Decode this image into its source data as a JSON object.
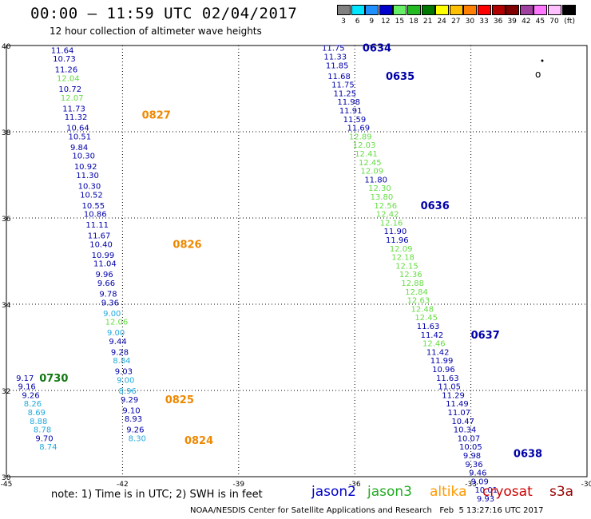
{
  "title": "00:00 – 11:59 UTC 02/04/2017",
  "subtitle": "12 hour collection of altimeter wave heights",
  "legend": {
    "unit": "(ft)",
    "items": [
      {
        "label": "3",
        "color": "#808080"
      },
      {
        "label": "6",
        "color": "#00e5ff"
      },
      {
        "label": "9",
        "color": "#1e90ff"
      },
      {
        "label": "12",
        "color": "#0000cd"
      },
      {
        "label": "15",
        "color": "#66ee66"
      },
      {
        "label": "18",
        "color": "#22bb22"
      },
      {
        "label": "21",
        "color": "#007700"
      },
      {
        "label": "24",
        "color": "#ffff00"
      },
      {
        "label": "27",
        "color": "#ffc000"
      },
      {
        "label": "30",
        "color": "#ff7f00"
      },
      {
        "label": "33",
        "color": "#ff0000"
      },
      {
        "label": "36",
        "color": "#b00000"
      },
      {
        "label": "39",
        "color": "#800000"
      },
      {
        "label": "42",
        "color": "#a040a0"
      },
      {
        "label": "45",
        "color": "#ff77ff"
      },
      {
        "label": "70",
        "color": "#ffc0ff"
      },
      {
        "label": "",
        "color": "#000000"
      }
    ]
  },
  "axes": {
    "lon_ticks": [
      "-45",
      "-42",
      "-39",
      "-36",
      "-33",
      "-30"
    ],
    "lat_ticks": [
      "40",
      "38",
      "36",
      "34",
      "32",
      "30"
    ]
  },
  "colors": {
    "c12": "#0000aa",
    "c15": "#66dd44",
    "c9": "#22aadd",
    "cg": "#117711",
    "co": "#ee8800"
  },
  "tracks": [
    {
      "name": "0827",
      "time_color": "co",
      "time_lat": 38.4,
      "time_lon": -41.5,
      "points": [
        {
          "lat": 39.9,
          "lon": -43.85,
          "v": "11.64",
          "c": "c12"
        },
        {
          "lat": 39.7,
          "lon": -43.8,
          "v": "10.73",
          "c": "c12"
        },
        {
          "lat": 39.45,
          "lon": -43.75,
          "v": "11.26",
          "c": "c12"
        },
        {
          "lat": 39.25,
          "lon": -43.7,
          "v": "12.04",
          "c": "c15"
        },
        {
          "lat": 39.0,
          "lon": -43.65,
          "v": "10.72",
          "c": "c12"
        },
        {
          "lat": 38.8,
          "lon": -43.6,
          "v": "12.07",
          "c": "c15"
        },
        {
          "lat": 38.55,
          "lon": -43.55,
          "v": "11.73",
          "c": "c12"
        },
        {
          "lat": 38.35,
          "lon": -43.5,
          "v": "11.32",
          "c": "c12"
        },
        {
          "lat": 38.1,
          "lon": -43.45,
          "v": "10.64",
          "c": "c12"
        },
        {
          "lat": 37.9,
          "lon": -43.4,
          "v": "10.51",
          "c": "c12"
        },
        {
          "lat": 37.65,
          "lon": -43.35,
          "v": "9.84",
          "c": "c12"
        },
        {
          "lat": 37.45,
          "lon": -43.3,
          "v": "10.30",
          "c": "c12"
        },
        {
          "lat": 37.2,
          "lon": -43.25,
          "v": "10.92",
          "c": "c12"
        },
        {
          "lat": 37.0,
          "lon": -43.2,
          "v": "11.30",
          "c": "c12"
        },
        {
          "lat": 36.75,
          "lon": -43.15,
          "v": "10.30",
          "c": "c12"
        },
        {
          "lat": 36.55,
          "lon": -43.1,
          "v": "10.52",
          "c": "c12"
        },
        {
          "lat": 36.3,
          "lon": -43.05,
          "v": "10.55",
          "c": "c12"
        },
        {
          "lat": 36.1,
          "lon": -43.0,
          "v": "10.86",
          "c": "c12"
        },
        {
          "lat": 35.85,
          "lon": -42.95,
          "v": "11.11",
          "c": "c12"
        }
      ]
    },
    {
      "name": "0826",
      "time_color": "co",
      "time_lat": 35.4,
      "time_lon": -40.7,
      "points": [
        {
          "lat": 35.6,
          "lon": -42.9,
          "v": "11.67",
          "c": "c12"
        },
        {
          "lat": 35.4,
          "lon": -42.85,
          "v": "10.40",
          "c": "c12"
        },
        {
          "lat": 35.15,
          "lon": -42.8,
          "v": "10.99",
          "c": "c12"
        },
        {
          "lat": 34.95,
          "lon": -42.75,
          "v": "11.04",
          "c": "c12"
        },
        {
          "lat": 34.7,
          "lon": -42.7,
          "v": "9.96",
          "c": "c12"
        },
        {
          "lat": 34.5,
          "lon": -42.65,
          "v": "9.66",
          "c": "c12"
        },
        {
          "lat": 34.25,
          "lon": -42.6,
          "v": "9.78",
          "c": "c12"
        },
        {
          "lat": 34.05,
          "lon": -42.55,
          "v": "9.36",
          "c": "c12"
        },
        {
          "lat": 33.8,
          "lon": -42.5,
          "v": "9.00",
          "c": "c9"
        },
        {
          "lat": 33.6,
          "lon": -42.45,
          "v": "12.06",
          "c": "c15"
        },
        {
          "lat": 33.35,
          "lon": -42.4,
          "v": "9.00",
          "c": "c9"
        },
        {
          "lat": 33.15,
          "lon": -42.35,
          "v": "9.44",
          "c": "c12"
        },
        {
          "lat": 32.9,
          "lon": -42.3,
          "v": "9.28",
          "c": "c12"
        },
        {
          "lat": 32.7,
          "lon": -42.25,
          "v": "8.84",
          "c": "c9"
        }
      ]
    },
    {
      "name": "0825",
      "time_color": "co",
      "time_lat": 31.8,
      "time_lon": -40.9,
      "points": [
        {
          "lat": 32.45,
          "lon": -42.2,
          "v": "9.03",
          "c": "c12"
        },
        {
          "lat": 32.25,
          "lon": -42.15,
          "v": "9.00",
          "c": "c9"
        },
        {
          "lat": 32.0,
          "lon": -42.1,
          "v": "8.96",
          "c": "c9"
        },
        {
          "lat": 31.8,
          "lon": -42.05,
          "v": "9.29",
          "c": "c12"
        },
        {
          "lat": 31.55,
          "lon": -42.0,
          "v": "9.10",
          "c": "c12"
        },
        {
          "lat": 31.35,
          "lon": -41.95,
          "v": "8.93",
          "c": "c12"
        },
        {
          "lat": 31.1,
          "lon": -41.9,
          "v": "9.26",
          "c": "c12"
        }
      ]
    },
    {
      "name": "0824",
      "time_color": "co",
      "time_lat": 30.85,
      "time_lon": -40.4,
      "points": [
        {
          "lat": 30.9,
          "lon": -41.85,
          "v": "8.30",
          "c": "c9"
        }
      ]
    },
    {
      "name": "0730",
      "time_color": "cg",
      "time_lat": 32.3,
      "time_lon": -44.15,
      "points": [
        {
          "lat": 32.3,
          "lon": -44.75,
          "v": "9.17",
          "c": "c12"
        },
        {
          "lat": 32.1,
          "lon": -44.7,
          "v": "9.16",
          "c": "c12"
        },
        {
          "lat": 31.9,
          "lon": -44.6,
          "v": "9.26",
          "c": "c12"
        },
        {
          "lat": 31.7,
          "lon": -44.55,
          "v": "8.26",
          "c": "c9"
        },
        {
          "lat": 31.5,
          "lon": -44.45,
          "v": "8.69",
          "c": "c9"
        },
        {
          "lat": 31.3,
          "lon": -44.4,
          "v": "8.88",
          "c": "c9"
        },
        {
          "lat": 31.1,
          "lon": -44.3,
          "v": "8.78",
          "c": "c9"
        },
        {
          "lat": 30.9,
          "lon": -44.25,
          "v": "9.70",
          "c": "c12"
        },
        {
          "lat": 30.7,
          "lon": -44.15,
          "v": "8.74",
          "c": "c9"
        }
      ]
    },
    {
      "name": "0634",
      "time_color": "c12",
      "time_lat": 39.95,
      "time_lon": -35.8,
      "points": [
        {
          "lat": 39.95,
          "lon": -36.85,
          "v": "11.75",
          "c": "c12"
        },
        {
          "lat": 39.75,
          "lon": -36.8,
          "v": "11.33",
          "c": "c12"
        },
        {
          "lat": 39.55,
          "lon": -36.75,
          "v": "11.85",
          "c": "c12"
        }
      ]
    },
    {
      "name": "0635",
      "time_color": "c12",
      "time_lat": 39.3,
      "time_lon": -35.2,
      "points": [
        {
          "lat": 39.3,
          "lon": -36.7,
          "v": "11.68",
          "c": "c12"
        },
        {
          "lat": 39.1,
          "lon": -36.6,
          "v": "11.75",
          "c": "c12"
        },
        {
          "lat": 38.9,
          "lon": -36.55,
          "v": "11.25",
          "c": "c12"
        },
        {
          "lat": 38.7,
          "lon": -36.45,
          "v": "11.98",
          "c": "c12"
        },
        {
          "lat": 38.5,
          "lon": -36.4,
          "v": "11.91",
          "c": "c12"
        },
        {
          "lat": 38.3,
          "lon": -36.3,
          "v": "11.59",
          "c": "c12"
        },
        {
          "lat": 38.1,
          "lon": -36.2,
          "v": "11.69",
          "c": "c12"
        },
        {
          "lat": 37.9,
          "lon": -36.15,
          "v": "12.89",
          "c": "c15"
        },
        {
          "lat": 37.7,
          "lon": -36.05,
          "v": "12.03",
          "c": "c15"
        },
        {
          "lat": 37.5,
          "lon": -36.0,
          "v": "12.41",
          "c": "c15"
        },
        {
          "lat": 37.3,
          "lon": -35.9,
          "v": "12.45",
          "c": "c15"
        },
        {
          "lat": 37.1,
          "lon": -35.85,
          "v": "12.09",
          "c": "c15"
        },
        {
          "lat": 36.9,
          "lon": -35.75,
          "v": "11.80",
          "c": "c12"
        },
        {
          "lat": 36.7,
          "lon": -35.65,
          "v": "12.30",
          "c": "c15"
        },
        {
          "lat": 36.5,
          "lon": -35.6,
          "v": "13.80",
          "c": "c15"
        }
      ]
    },
    {
      "name": "0636",
      "time_color": "c12",
      "time_lat": 36.3,
      "time_lon": -34.3,
      "points": [
        {
          "lat": 36.3,
          "lon": -35.5,
          "v": "12.56",
          "c": "c15"
        },
        {
          "lat": 36.1,
          "lon": -35.45,
          "v": "12.42",
          "c": "c15"
        },
        {
          "lat": 35.9,
          "lon": -35.35,
          "v": "12.16",
          "c": "c15"
        },
        {
          "lat": 35.7,
          "lon": -35.25,
          "v": "11.90",
          "c": "c12"
        },
        {
          "lat": 35.5,
          "lon": -35.2,
          "v": "11.96",
          "c": "c12"
        },
        {
          "lat": 35.3,
          "lon": -35.1,
          "v": "12.09",
          "c": "c15"
        },
        {
          "lat": 35.1,
          "lon": -35.05,
          "v": "12.18",
          "c": "c15"
        },
        {
          "lat": 34.9,
          "lon": -34.95,
          "v": "12.15",
          "c": "c15"
        },
        {
          "lat": 34.7,
          "lon": -34.85,
          "v": "12.36",
          "c": "c15"
        },
        {
          "lat": 34.5,
          "lon": -34.8,
          "v": "12.88",
          "c": "c15"
        },
        {
          "lat": 34.3,
          "lon": -34.7,
          "v": "12.84",
          "c": "c15"
        },
        {
          "lat": 34.1,
          "lon": -34.65,
          "v": "12.63",
          "c": "c15"
        },
        {
          "lat": 33.9,
          "lon": -34.55,
          "v": "12.48",
          "c": "c15"
        },
        {
          "lat": 33.7,
          "lon": -34.45,
          "v": "12.45",
          "c": "c15"
        },
        {
          "lat": 33.5,
          "lon": -34.4,
          "v": "11.63",
          "c": "c12"
        }
      ]
    },
    {
      "name": "0637",
      "time_color": "c12",
      "time_lat": 33.3,
      "time_lon": -33.0,
      "points": [
        {
          "lat": 33.3,
          "lon": -34.3,
          "v": "11.42",
          "c": "c12"
        },
        {
          "lat": 33.1,
          "lon": -34.25,
          "v": "12.46",
          "c": "c15"
        },
        {
          "lat": 32.9,
          "lon": -34.15,
          "v": "11.42",
          "c": "c12"
        },
        {
          "lat": 32.7,
          "lon": -34.05,
          "v": "11.99",
          "c": "c12"
        },
        {
          "lat": 32.5,
          "lon": -34.0,
          "v": "10.96",
          "c": "c12"
        },
        {
          "lat": 32.3,
          "lon": -33.9,
          "v": "11.63",
          "c": "c12"
        },
        {
          "lat": 32.1,
          "lon": -33.85,
          "v": "11.05",
          "c": "c12"
        },
        {
          "lat": 31.9,
          "lon": -33.75,
          "v": "11.29",
          "c": "c12"
        },
        {
          "lat": 31.7,
          "lon": -33.65,
          "v": "11.49",
          "c": "c12"
        },
        {
          "lat": 31.5,
          "lon": -33.6,
          "v": "11.07",
          "c": "c12"
        },
        {
          "lat": 31.3,
          "lon": -33.5,
          "v": "10.47",
          "c": "c12"
        },
        {
          "lat": 31.1,
          "lon": -33.45,
          "v": "10.34",
          "c": "c12"
        },
        {
          "lat": 30.9,
          "lon": -33.35,
          "v": "10.07",
          "c": "c12"
        },
        {
          "lat": 30.7,
          "lon": -33.3,
          "v": "10.05",
          "c": "c12"
        }
      ]
    },
    {
      "name": "0638",
      "time_color": "c12",
      "time_lat": 30.55,
      "time_lon": -31.9,
      "points": [
        {
          "lat": 30.5,
          "lon": -33.2,
          "v": "9.98",
          "c": "c12"
        },
        {
          "lat": 30.3,
          "lon": -33.15,
          "v": "9.36",
          "c": "c12"
        },
        {
          "lat": 30.1,
          "lon": -33.05,
          "v": "9.46",
          "c": "c12"
        },
        {
          "lat": 29.9,
          "lon": -33.0,
          "v": "9.09",
          "c": "c12"
        },
        {
          "lat": 29.7,
          "lon": -32.9,
          "v": "10.01",
          "c": "c12"
        },
        {
          "lat": 29.5,
          "lon": -32.85,
          "v": "9.93",
          "c": "c12"
        }
      ]
    }
  ],
  "note": "note: 1) Time is in UTC; 2) SWH is in feet",
  "satellites": [
    {
      "name": "jason2",
      "color": "#0000cc"
    },
    {
      "name": "jason3",
      "color": "#22aa22"
    },
    {
      "name": "altika",
      "color": "#ff9900"
    },
    {
      "name": "cryosat",
      "color": "#cc0000"
    },
    {
      "name": "s3a",
      "color": "#990000"
    }
  ],
  "credit": "NOAA/NESDIS Center for Satellite Applications and Research   Feb  5 13:27:16 UTC 2017"
}
